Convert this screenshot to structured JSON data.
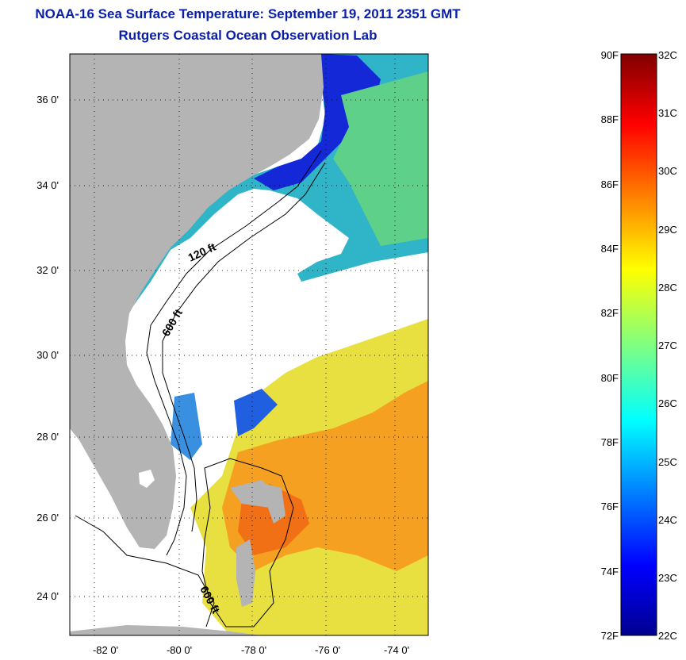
{
  "title_line1": "NOAA-16 Sea Surface Temperature:  September 19, 2011 2351 GMT",
  "title_line2": "Rutgers Coastal Ocean Observation Lab",
  "lat_labels": [
    "36 0'",
    "34 0'",
    "32 0'",
    "30 0'",
    "28 0'",
    "26 0'",
    "24 0'"
  ],
  "lon_labels": [
    "-82 0'",
    "-80 0'",
    "-78 0'",
    "-76 0'",
    "-74 0'"
  ],
  "contours": {
    "shelf": "120 ft",
    "slope": "600 ft",
    "bahamas": "600 ft"
  },
  "colorbar": {
    "f_labels": [
      "90F",
      "88F",
      "86F",
      "84F",
      "82F",
      "80F",
      "78F",
      "76F",
      "74F",
      "72F"
    ],
    "c_labels": [
      "32C",
      "31C",
      "30C",
      "29C",
      "28C",
      "27C",
      "26C",
      "25C",
      "24C",
      "23C",
      "22C"
    ]
  },
  "colors": {
    "land": "#b4b4b4",
    "title": "#0a1fa8",
    "no_data": "#ffffff"
  }
}
